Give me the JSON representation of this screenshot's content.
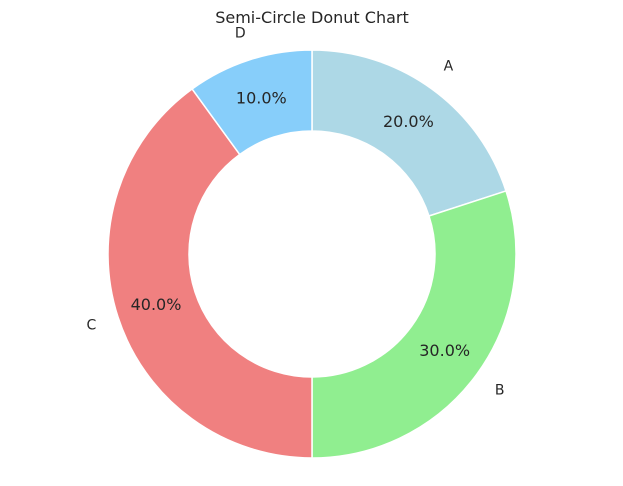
{
  "chart_data": {
    "type": "pie",
    "variant": "donut",
    "title": "Semi-Circle Donut Chart",
    "categories": [
      "A",
      "B",
      "C",
      "D"
    ],
    "values": [
      20.0,
      30.0,
      40.0,
      10.0
    ],
    "percent_labels": [
      "20.0%",
      "30.0%",
      "40.0%",
      "10.0%"
    ],
    "colors": [
      "#add8e6",
      "#90ee90",
      "#f08080",
      "#87cefa"
    ],
    "start_angle_deg": 90,
    "direction": "clockwise",
    "legend": "none"
  }
}
